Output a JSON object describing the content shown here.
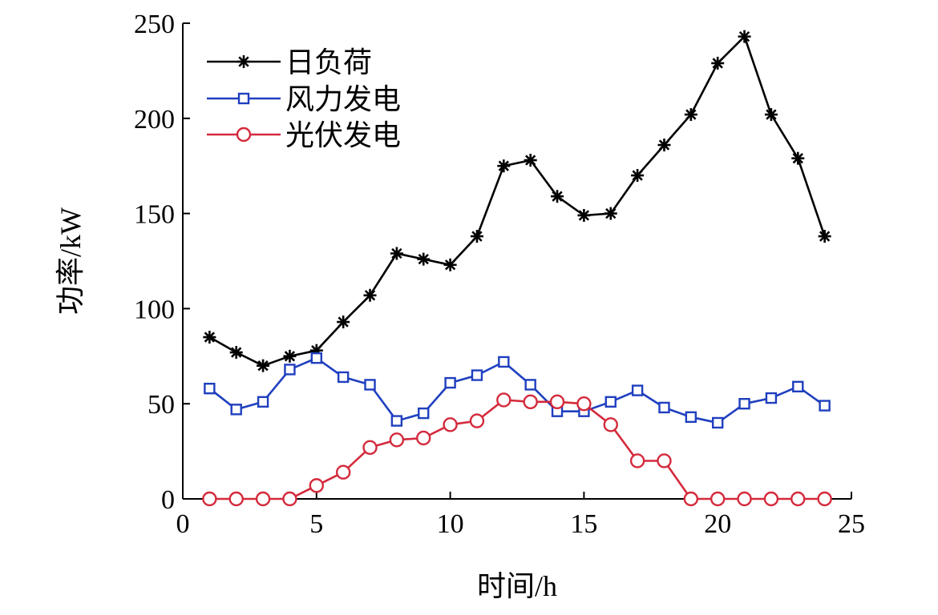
{
  "chart_data": {
    "type": "line",
    "title": "",
    "xlabel": "时间/h",
    "ylabel": "功率/kW",
    "xlim": [
      0,
      25
    ],
    "ylim": [
      0,
      250
    ],
    "xticks": [
      "0",
      "5",
      "10",
      "15",
      "20",
      "25"
    ],
    "yticks": [
      "0",
      "50",
      "100",
      "150",
      "200",
      "250"
    ],
    "grid": false,
    "legend_position": "top-left",
    "x": [
      1,
      2,
      3,
      4,
      5,
      6,
      7,
      8,
      9,
      10,
      11,
      12,
      13,
      14,
      15,
      16,
      17,
      18,
      19,
      20,
      21,
      22,
      23,
      24
    ],
    "series": [
      {
        "name": "日负荷",
        "color": "#000000",
        "marker": "asterisk",
        "values": [
          85,
          77,
          70,
          75,
          78,
          93,
          107,
          129,
          126,
          123,
          138,
          175,
          178,
          159,
          149,
          150,
          170,
          186,
          202,
          229,
          243,
          202,
          179,
          138
        ]
      },
      {
        "name": "风力发电",
        "color": "#1f3fbf",
        "marker": "square",
        "values": [
          58,
          47,
          51,
          68,
          74,
          64,
          60,
          41,
          45,
          61,
          65,
          72,
          60,
          46,
          46,
          51,
          57,
          48,
          43,
          40,
          50,
          53,
          59,
          49
        ]
      },
      {
        "name": "光伏发电",
        "color": "#d42a3c",
        "marker": "circle",
        "values": [
          0,
          0,
          0,
          0,
          7,
          14,
          27,
          31,
          32,
          39,
          41,
          52,
          51,
          51,
          50,
          39,
          20,
          20,
          0,
          0,
          0,
          0,
          0,
          0
        ]
      }
    ]
  }
}
